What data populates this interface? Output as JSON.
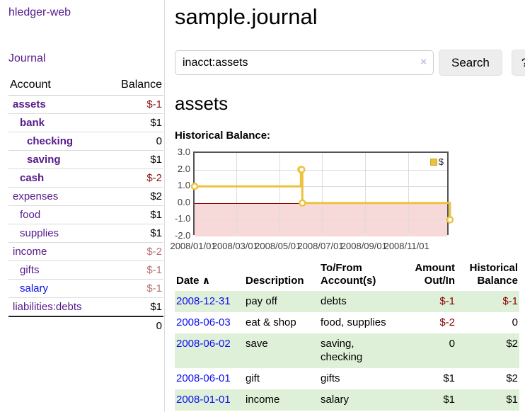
{
  "app": {
    "brand": "hledger-web"
  },
  "sidebar": {
    "journal_link": "Journal",
    "accounts_header": {
      "account": "Account",
      "balance": "Balance"
    },
    "accounts": [
      {
        "name": "assets",
        "balance": "$-1",
        "depth": 1,
        "bold": true,
        "neg": "dark"
      },
      {
        "name": "bank",
        "balance": "$1",
        "depth": 2,
        "bold": true,
        "neg": "none"
      },
      {
        "name": "checking",
        "balance": "0",
        "depth": 3,
        "bold": true,
        "neg": "none"
      },
      {
        "name": "saving",
        "balance": "$1",
        "depth": 3,
        "bold": true,
        "neg": "none"
      },
      {
        "name": "cash",
        "balance": "$-2",
        "depth": 2,
        "bold": true,
        "neg": "dark"
      },
      {
        "name": "expenses",
        "balance": "$2",
        "depth": 1,
        "bold": false,
        "neg": "none"
      },
      {
        "name": "food",
        "balance": "$1",
        "depth": 2,
        "bold": false,
        "neg": "none"
      },
      {
        "name": "supplies",
        "balance": "$1",
        "depth": 2,
        "bold": false,
        "neg": "none"
      },
      {
        "name": "income",
        "balance": "$-2",
        "depth": 1,
        "bold": false,
        "neg": "light"
      },
      {
        "name": "gifts",
        "balance": "$-1",
        "depth": 2,
        "bold": false,
        "neg": "light"
      },
      {
        "name": "salary",
        "balance": "$-1",
        "depth": 2,
        "bold": false,
        "neg": "light",
        "unvisited": true
      },
      {
        "name": "liabilities:debts",
        "balance": "$1",
        "depth": 1,
        "bold": false,
        "neg": "none"
      }
    ],
    "total": "0"
  },
  "header": {
    "title": "sample.journal"
  },
  "search": {
    "value": "inacct:assets",
    "clear_icon": "×",
    "button_label": "Search",
    "help_label": "?"
  },
  "account_page": {
    "title": "assets",
    "chart_label": "Historical Balance:"
  },
  "chart_data": {
    "type": "line",
    "step": true,
    "series": [
      {
        "name": "$",
        "color": "#edc240",
        "points": [
          [
            "2008/01/01",
            1
          ],
          [
            "2008/06/01",
            2
          ],
          [
            "2008/06/02",
            2
          ],
          [
            "2008/06/03",
            0
          ],
          [
            "2008/12/31",
            -1
          ]
        ]
      }
    ],
    "x_range": [
      "2008/01/01",
      "2008/12/31"
    ],
    "ylim": [
      -2.0,
      3.0
    ],
    "yticks": [
      "3.0",
      "2.0",
      "1.0",
      "0.0",
      "-1.0",
      "-2.0"
    ],
    "xticks": [
      "2008/01/01",
      "2008/03/01",
      "2008/05/01",
      "2008/07/01",
      "2008/09/01",
      "2008/11/01"
    ],
    "legend": {
      "label": "$",
      "position": "top-right"
    },
    "grid": true,
    "zero_line_color": "#8b0000",
    "negative_fill": "#f8d9d9"
  },
  "register": {
    "sort_icon": "∧",
    "headers": {
      "date": "Date",
      "description": "Description",
      "accounts": "To/From Account(s)",
      "amount": "Amount Out/In",
      "balance": "Historical Balance"
    },
    "rows": [
      {
        "date": "2008-12-31",
        "description": "pay off",
        "accounts": "debts",
        "amount": "$-1",
        "balance": "$-1",
        "amount_neg": true,
        "balance_neg": true,
        "stripe": true
      },
      {
        "date": "2008-06-03",
        "description": "eat & shop",
        "accounts": "food, supplies",
        "amount": "$-2",
        "balance": "0",
        "amount_neg": true,
        "balance_neg": false,
        "stripe": false
      },
      {
        "date": "2008-06-02",
        "description": "save",
        "accounts": "saving, checking",
        "amount": "0",
        "balance": "$2",
        "amount_neg": false,
        "balance_neg": false,
        "stripe": true
      },
      {
        "date": "2008-06-01",
        "description": "gift",
        "accounts": "gifts",
        "amount": "$1",
        "balance": "$2",
        "amount_neg": false,
        "balance_neg": false,
        "stripe": false
      },
      {
        "date": "2008-01-01",
        "description": "income",
        "accounts": "salary",
        "amount": "$1",
        "balance": "$1",
        "amount_neg": false,
        "balance_neg": false,
        "stripe": true
      }
    ]
  }
}
